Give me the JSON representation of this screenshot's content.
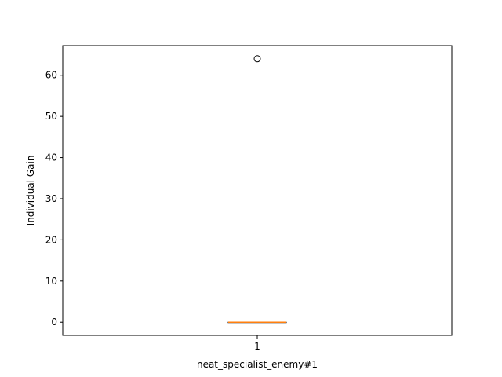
{
  "chart_data": {
    "type": "box",
    "title": "",
    "xlabel": "neat_specialist_enemy#1",
    "ylabel": "Individual Gain",
    "categories": [
      "1"
    ],
    "ylim": [
      -3.2,
      67.2
    ],
    "yticks": [
      "0",
      "10",
      "20",
      "30",
      "40",
      "50",
      "60"
    ],
    "grid": false,
    "boxes": [
      {
        "category": "1",
        "q1": 0,
        "median": 0,
        "q3": 0,
        "whisker_low": 0,
        "whisker_high": 0,
        "outliers": [
          64
        ]
      }
    ],
    "colors": {
      "box": "#000000",
      "median": "#ff7f0e",
      "axes": "#000000",
      "background": "#ffffff"
    }
  }
}
